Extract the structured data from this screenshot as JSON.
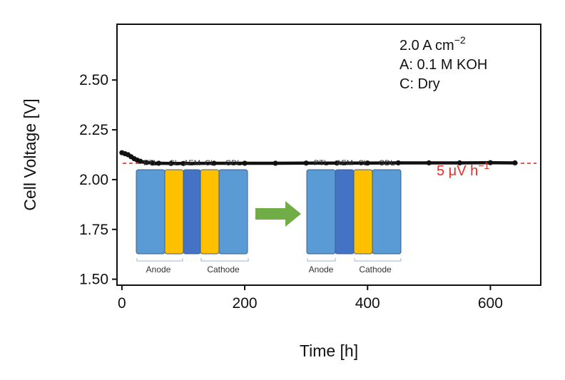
{
  "chart_data": {
    "type": "line",
    "xlabel": "Time [h]",
    "ylabel": "Cell Voltage [V]",
    "xlim": [
      -8,
      682
    ],
    "ylim": [
      1.47,
      2.78
    ],
    "xticks": [
      "0",
      "200",
      "400",
      "600"
    ],
    "yticks": [
      "1.50",
      "1.75",
      "2.00",
      "2.25",
      "2.50"
    ],
    "grid": false,
    "series": [
      {
        "color": "#111111",
        "x": [
          0,
          5,
          10,
          15,
          20,
          25,
          30,
          40,
          50,
          60,
          80,
          100,
          150,
          200,
          250,
          300,
          350,
          400,
          450,
          500,
          550,
          600,
          640
        ],
        "y": [
          2.135,
          2.13,
          2.125,
          2.115,
          2.105,
          2.098,
          2.092,
          2.086,
          2.083,
          2.082,
          2.081,
          2.081,
          2.082,
          2.082,
          2.082,
          2.083,
          2.083,
          2.083,
          2.084,
          2.084,
          2.084,
          2.085,
          2.084
        ]
      }
    ],
    "reference_line": {
      "y": 2.082,
      "color": "#e0302a",
      "style": "dashed"
    },
    "conditions": {
      "line1_main": "2.0 A cm",
      "line1_sup": "−2",
      "line2": "A: 0.1 M KOH",
      "line3": "C: Dry"
    },
    "degradation_rate": {
      "main": "5 μV h",
      "sup": "−1"
    }
  },
  "inset": {
    "left_stack": [
      {
        "label": "PTL",
        "color": "#5b9bd5"
      },
      {
        "label": "CL",
        "color": "#ffc000"
      },
      {
        "label": "AEM",
        "color": "#4472c4"
      },
      {
        "label": "CL",
        "color": "#ffc000"
      },
      {
        "label": "GDL",
        "color": "#5b9bd5"
      }
    ],
    "right_stack": [
      {
        "label": "PTL",
        "color": "#5b9bd5"
      },
      {
        "label": "AEM",
        "color": "#4472c4"
      },
      {
        "label": "CL",
        "color": "#ffc000"
      },
      {
        "label": "GDL",
        "color": "#5b9bd5"
      }
    ],
    "left_groups": {
      "anode": "Anode",
      "cathode": "Cathode"
    },
    "right_groups": {
      "anode": "Anode",
      "cathode": "Cathode"
    },
    "arrow_color": "#70ad47"
  }
}
